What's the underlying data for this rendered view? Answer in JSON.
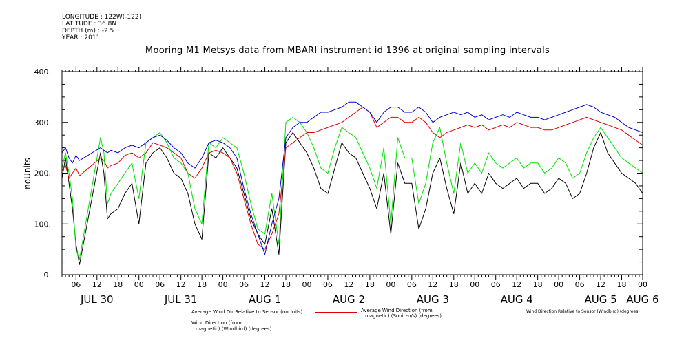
{
  "meta": {
    "longitude": "LONGITUDE : 122W(-122)",
    "latitude": "LATITUDE : 36.8N",
    "depth": "DEPTH (m) : -2.5",
    "year": "YEAR : 2011"
  },
  "title": "Mooring M1 Metsys data from MBARI instrument id 1396 at original sampling intervals",
  "legend": {
    "s1": "Average Wind Dir Relative to Sensor (noUnits)",
    "s2a": "Average Wind Direction (from",
    "s2b": "magnetic) (Sonic-n/s) (degrees)",
    "s3": "Wind Direction Relative to Sensor (Windbird) (degrees)",
    "s4a": "Wind Direction (from",
    "s4b": "magnetic) (Windbird) (degrees)"
  },
  "colors": {
    "black": "#000000",
    "red": "#e00000",
    "green": "#00e000",
    "blue": "#0000d0"
  },
  "chart_data": {
    "type": "line",
    "title": "Mooring M1 Metsys data from MBARI instrument id 1396 at original sampling intervals",
    "ylabel": "noUnits",
    "ylim": [
      0,
      400
    ],
    "yticks": [
      0,
      100,
      200,
      300,
      400
    ],
    "xlim": [
      2,
      168
    ],
    "x_unit": "hours since 2011-07-30 00:00",
    "x_hour_ticks": [
      {
        "x": 6,
        "label": "06"
      },
      {
        "x": 12,
        "label": "12"
      },
      {
        "x": 18,
        "label": "18"
      },
      {
        "x": 24,
        "label": "00"
      },
      {
        "x": 30,
        "label": "06"
      },
      {
        "x": 36,
        "label": "12"
      },
      {
        "x": 42,
        "label": "18"
      },
      {
        "x": 48,
        "label": "00"
      },
      {
        "x": 54,
        "label": "06"
      },
      {
        "x": 60,
        "label": "12"
      },
      {
        "x": 66,
        "label": "18"
      },
      {
        "x": 72,
        "label": "00"
      },
      {
        "x": 78,
        "label": "06"
      },
      {
        "x": 84,
        "label": "12"
      },
      {
        "x": 90,
        "label": "18"
      },
      {
        "x": 96,
        "label": "00"
      },
      {
        "x": 102,
        "label": "06"
      },
      {
        "x": 108,
        "label": "12"
      },
      {
        "x": 114,
        "label": "18"
      },
      {
        "x": 120,
        "label": "00"
      },
      {
        "x": 126,
        "label": "06"
      },
      {
        "x": 132,
        "label": "12"
      },
      {
        "x": 138,
        "label": "18"
      },
      {
        "x": 144,
        "label": "00"
      },
      {
        "x": 150,
        "label": "06"
      },
      {
        "x": 156,
        "label": "12"
      },
      {
        "x": 162,
        "label": "18"
      },
      {
        "x": 168,
        "label": "00"
      }
    ],
    "x_day_labels": [
      {
        "x": 12,
        "label": "JUL 30"
      },
      {
        "x": 36,
        "label": "JUL 31"
      },
      {
        "x": 60,
        "label": "AUG  1"
      },
      {
        "x": 84,
        "label": "AUG  2"
      },
      {
        "x": 108,
        "label": "AUG  3"
      },
      {
        "x": 132,
        "label": "AUG  4"
      },
      {
        "x": 156,
        "label": "AUG  5"
      },
      {
        "x": 168,
        "label": "AUG  6"
      }
    ],
    "series": [
      {
        "name": "Average Wind Dir Relative to Sensor (noUnits)",
        "color": "#000000",
        "x": [
          2,
          3,
          4,
          5,
          6,
          7,
          13,
          14,
          15,
          16,
          18,
          20,
          22,
          24,
          26,
          28,
          30,
          32,
          34,
          36,
          38,
          40,
          42,
          44,
          46,
          48,
          50,
          52,
          54,
          56,
          58,
          60,
          62,
          64,
          66,
          68,
          70,
          72,
          74,
          76,
          78,
          80,
          82,
          84,
          86,
          88,
          90,
          92,
          94,
          96,
          98,
          100,
          102,
          104,
          106,
          108,
          110,
          112,
          114,
          116,
          118,
          120,
          122,
          124,
          126,
          128,
          130,
          132,
          134,
          136,
          138,
          140,
          142,
          144,
          146,
          148,
          150,
          152,
          154,
          156,
          158,
          160,
          162,
          164,
          166,
          168
        ],
        "y": [
          190,
          230,
          180,
          130,
          60,
          20,
          240,
          200,
          110,
          120,
          130,
          160,
          180,
          100,
          220,
          240,
          250,
          230,
          200,
          190,
          160,
          100,
          70,
          240,
          230,
          250,
          230,
          210,
          160,
          110,
          80,
          60,
          130,
          40,
          260,
          280,
          260,
          240,
          210,
          170,
          160,
          210,
          260,
          240,
          230,
          200,
          170,
          130,
          200,
          80,
          220,
          180,
          180,
          90,
          130,
          200,
          230,
          170,
          120,
          220,
          160,
          180,
          160,
          200,
          180,
          170,
          180,
          190,
          170,
          180,
          180,
          160,
          170,
          190,
          180,
          150,
          160,
          200,
          250,
          280,
          240,
          220,
          200,
          190,
          180,
          160
        ]
      },
      {
        "name": "Average Wind Direction (from magnetic) (Sonic-n/s) (degrees)",
        "color": "#e00000",
        "x": [
          2,
          3,
          4,
          5,
          6,
          7,
          13,
          14,
          15,
          16,
          18,
          20,
          22,
          24,
          26,
          28,
          30,
          32,
          34,
          36,
          38,
          40,
          42,
          44,
          46,
          48,
          50,
          52,
          54,
          56,
          58,
          60,
          62,
          64,
          66,
          68,
          70,
          72,
          74,
          76,
          78,
          80,
          82,
          84,
          86,
          88,
          90,
          92,
          94,
          96,
          98,
          100,
          102,
          104,
          106,
          108,
          110,
          112,
          114,
          116,
          118,
          120,
          122,
          124,
          126,
          128,
          130,
          132,
          134,
          136,
          138,
          140,
          142,
          144,
          146,
          148,
          150,
          152,
          154,
          156,
          158,
          160,
          162,
          164,
          166,
          168
        ],
        "y": [
          205,
          215,
          190,
          200,
          210,
          195,
          230,
          225,
          210,
          215,
          220,
          235,
          240,
          230,
          240,
          260,
          255,
          250,
          240,
          230,
          200,
          190,
          210,
          240,
          245,
          240,
          230,
          200,
          150,
          100,
          60,
          50,
          80,
          120,
          250,
          260,
          270,
          280,
          280,
          285,
          290,
          295,
          300,
          310,
          320,
          330,
          320,
          290,
          300,
          310,
          310,
          300,
          300,
          310,
          300,
          280,
          270,
          280,
          285,
          290,
          295,
          290,
          295,
          285,
          290,
          295,
          290,
          300,
          295,
          290,
          290,
          285,
          285,
          290,
          295,
          300,
          305,
          310,
          305,
          300,
          295,
          290,
          285,
          275,
          265,
          255
        ]
      },
      {
        "name": "Wind Direction Relative to Sensor (Windbird) (degrees)",
        "color": "#00e000",
        "x": [
          2,
          3,
          4,
          5,
          6,
          7,
          13,
          14,
          15,
          16,
          18,
          20,
          22,
          24,
          26,
          28,
          30,
          32,
          34,
          36,
          38,
          40,
          42,
          44,
          46,
          48,
          50,
          52,
          54,
          56,
          58,
          60,
          62,
          64,
          66,
          68,
          70,
          72,
          74,
          76,
          78,
          80,
          82,
          84,
          86,
          88,
          90,
          92,
          94,
          96,
          98,
          100,
          102,
          104,
          106,
          108,
          110,
          112,
          114,
          116,
          118,
          120,
          122,
          124,
          126,
          128,
          130,
          132,
          134,
          136,
          138,
          140,
          142,
          144,
          146,
          148,
          150,
          152,
          154,
          156,
          158,
          160,
          162,
          164,
          166,
          168
        ],
        "y": [
          210,
          240,
          200,
          150,
          50,
          30,
          270,
          240,
          140,
          160,
          180,
          200,
          220,
          150,
          260,
          270,
          280,
          260,
          230,
          220,
          200,
          130,
          100,
          260,
          250,
          270,
          260,
          250,
          200,
          140,
          90,
          80,
          160,
          60,
          300,
          310,
          300,
          280,
          250,
          210,
          200,
          250,
          290,
          280,
          270,
          240,
          210,
          170,
          250,
          100,
          270,
          230,
          230,
          140,
          180,
          260,
          290,
          220,
          160,
          260,
          200,
          220,
          200,
          240,
          220,
          210,
          220,
          230,
          210,
          220,
          220,
          200,
          210,
          230,
          220,
          190,
          200,
          240,
          270,
          290,
          270,
          250,
          230,
          220,
          210,
          200
        ]
      },
      {
        "name": "Wind Direction (from magnetic) (Windbird) (degrees)",
        "color": "#0000d0",
        "x": [
          2,
          3,
          4,
          5,
          6,
          7,
          13,
          14,
          15,
          16,
          18,
          20,
          22,
          24,
          26,
          28,
          30,
          32,
          34,
          36,
          38,
          40,
          42,
          44,
          46,
          48,
          50,
          52,
          54,
          56,
          58,
          60,
          62,
          64,
          66,
          68,
          70,
          72,
          74,
          76,
          78,
          80,
          82,
          84,
          86,
          88,
          90,
          92,
          94,
          96,
          98,
          100,
          102,
          104,
          106,
          108,
          110,
          112,
          114,
          116,
          118,
          120,
          122,
          124,
          126,
          128,
          130,
          132,
          134,
          136,
          138,
          140,
          142,
          144,
          146,
          148,
          150,
          152,
          154,
          156,
          158,
          160,
          162,
          164,
          166,
          168
        ],
        "y": [
          240,
          250,
          230,
          220,
          235,
          225,
          250,
          245,
          240,
          245,
          240,
          250,
          255,
          250,
          260,
          270,
          275,
          265,
          250,
          240,
          220,
          210,
          230,
          260,
          265,
          260,
          250,
          230,
          170,
          120,
          80,
          40,
          100,
          150,
          270,
          290,
          300,
          300,
          310,
          320,
          320,
          325,
          330,
          340,
          340,
          330,
          320,
          300,
          320,
          330,
          330,
          320,
          320,
          330,
          320,
          300,
          310,
          315,
          320,
          315,
          320,
          310,
          315,
          305,
          310,
          315,
          310,
          320,
          315,
          310,
          310,
          305,
          310,
          315,
          320,
          325,
          330,
          335,
          330,
          320,
          315,
          310,
          300,
          290,
          285,
          280
        ]
      }
    ]
  }
}
